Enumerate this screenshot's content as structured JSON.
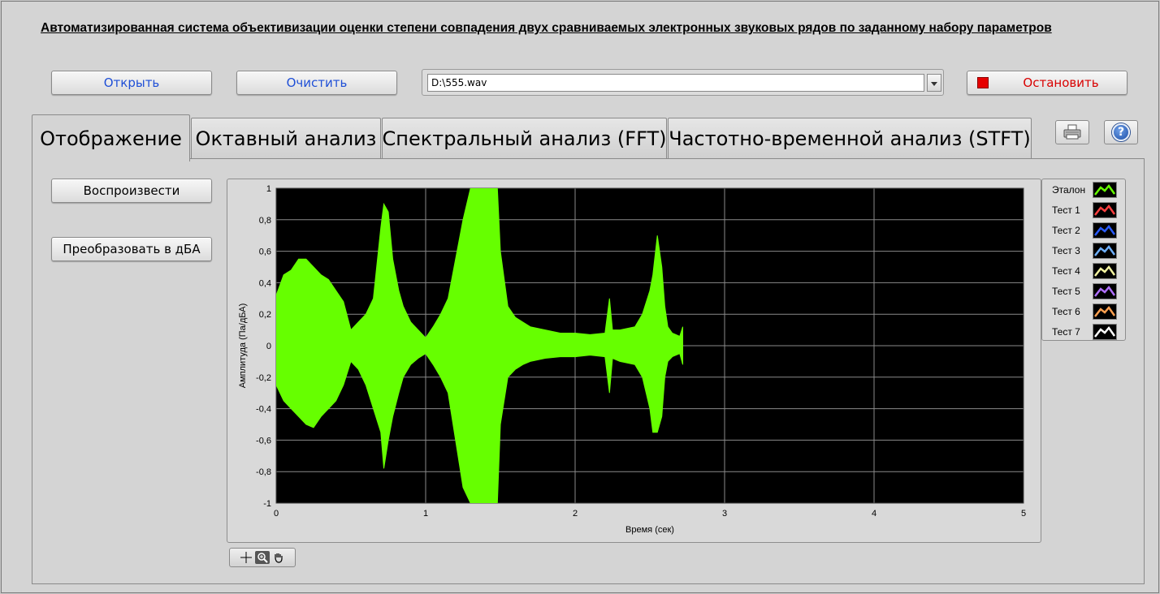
{
  "header": {
    "title": "Автоматизированная система объективизации оценки степени совпадения двух сравниваемых электронных звуковых рядов по заданному набору параметров"
  },
  "toolbar": {
    "open_label": "Открыть",
    "clear_label": "Очистить",
    "file_path": "D:\\555.wav",
    "stop_label": "Остановить"
  },
  "tabs": [
    {
      "label": "Отображение",
      "active": true
    },
    {
      "label": "Октавный анализ",
      "active": false
    },
    {
      "label": "Спектральный анализ (FFT)",
      "active": false
    },
    {
      "label": "Частотно-временной анализ (STFT)",
      "active": false
    }
  ],
  "icons": {
    "print": "printer-icon",
    "help": "help-icon",
    "help_glyph": "?"
  },
  "panel": {
    "play_label": "Воспроизвести",
    "convert_label": "Преобразовать в дБА"
  },
  "legend": {
    "items": [
      {
        "label": "Эталон",
        "color": "#66ff00"
      },
      {
        "label": "Тест 1",
        "color": "#ff4040"
      },
      {
        "label": "Тест 2",
        "color": "#2a5cff"
      },
      {
        "label": "Тест 3",
        "color": "#6fb0ff"
      },
      {
        "label": "Тест 4",
        "color": "#f4f4a0"
      },
      {
        "label": "Тест 5",
        "color": "#b070ff"
      },
      {
        "label": "Тест 6",
        "color": "#ffa050"
      },
      {
        "label": "Тест 7",
        "color": "#ffffff"
      }
    ]
  },
  "chart_data": {
    "type": "line",
    "title": "",
    "xlabel": "Время (сек)",
    "ylabel": "Амплитуда (Па/дБА)",
    "xlim": [
      0,
      5
    ],
    "ylim": [
      -1,
      1
    ],
    "x_ticks": [
      "0",
      "1",
      "2",
      "3",
      "4",
      "5"
    ],
    "y_ticks": [
      "1",
      "0,8",
      "0,6",
      "0,4",
      "0,2",
      "0",
      "-0,2",
      "-0,4",
      "-0,6",
      "-0,8",
      "-1"
    ],
    "grid": true,
    "background": "#000000",
    "grid_color": "#8a8a8a",
    "series": [
      {
        "name": "Эталон",
        "color": "#66ff00",
        "x": [
          0.0,
          0.05,
          0.1,
          0.15,
          0.2,
          0.25,
          0.3,
          0.35,
          0.4,
          0.45,
          0.5,
          0.55,
          0.6,
          0.65,
          0.7,
          0.72,
          0.75,
          0.78,
          0.82,
          0.85,
          0.9,
          0.95,
          1.0,
          1.05,
          1.1,
          1.15,
          1.2,
          1.25,
          1.3,
          1.35,
          1.4,
          1.45,
          1.48,
          1.5,
          1.55,
          1.6,
          1.65,
          1.7,
          1.8,
          1.9,
          2.0,
          2.1,
          2.2,
          2.23,
          2.25,
          2.3,
          2.4,
          2.45,
          2.5,
          2.52,
          2.55,
          2.58,
          2.6,
          2.62,
          2.65,
          2.7,
          2.72
        ],
        "upper": [
          0.32,
          0.45,
          0.48,
          0.55,
          0.55,
          0.5,
          0.45,
          0.42,
          0.35,
          0.28,
          0.1,
          0.15,
          0.2,
          0.3,
          0.75,
          0.9,
          0.85,
          0.55,
          0.35,
          0.25,
          0.15,
          0.1,
          0.05,
          0.12,
          0.2,
          0.3,
          0.55,
          0.8,
          1.0,
          1.0,
          1.0,
          1.0,
          1.0,
          0.6,
          0.25,
          0.18,
          0.15,
          0.12,
          0.1,
          0.08,
          0.08,
          0.07,
          0.08,
          0.3,
          0.1,
          0.1,
          0.12,
          0.2,
          0.35,
          0.45,
          0.7,
          0.5,
          0.25,
          0.12,
          0.08,
          0.06,
          0.12
        ],
        "lower": [
          -0.25,
          -0.35,
          -0.4,
          -0.45,
          -0.5,
          -0.52,
          -0.45,
          -0.4,
          -0.35,
          -0.25,
          -0.1,
          -0.15,
          -0.25,
          -0.4,
          -0.55,
          -0.78,
          -0.6,
          -0.45,
          -0.3,
          -0.2,
          -0.12,
          -0.08,
          -0.05,
          -0.12,
          -0.2,
          -0.3,
          -0.6,
          -0.9,
          -1.0,
          -1.0,
          -1.0,
          -1.0,
          -1.0,
          -0.5,
          -0.2,
          -0.15,
          -0.12,
          -0.1,
          -0.08,
          -0.07,
          -0.07,
          -0.06,
          -0.07,
          -0.3,
          -0.08,
          -0.1,
          -0.12,
          -0.2,
          -0.4,
          -0.55,
          -0.55,
          -0.45,
          -0.2,
          -0.1,
          -0.07,
          -0.05,
          -0.12
        ]
      }
    ]
  }
}
